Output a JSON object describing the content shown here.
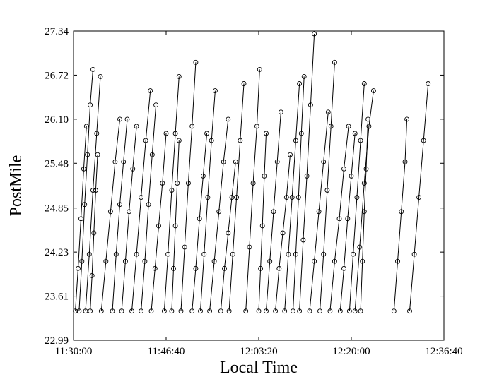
{
  "chart_data": {
    "type": "line",
    "title": "",
    "xlabel": "Local Time",
    "ylabel": "PostMile",
    "x_axis": {
      "range": [
        "11:30:00",
        "12:36:40"
      ],
      "ticks": [
        "11:30:00",
        "11:46:40",
        "12:03:20",
        "12:20:00",
        "12:36:40"
      ]
    },
    "y_axis": {
      "range": [
        22.99,
        27.34
      ],
      "ticks": [
        "22.99",
        "23.61",
        "24.23",
        "24.85",
        "25.48",
        "26.10",
        "26.72",
        "27.34"
      ]
    },
    "grid": false,
    "legend": "none",
    "marker": "open-circle",
    "line_color": "#000000",
    "series": [
      {
        "x": [
          "11:30:20",
          "11:30:50",
          "11:31:20",
          "11:31:50",
          "11:32:20"
        ],
        "y": [
          23.4,
          24.0,
          24.7,
          25.4,
          26.0
        ]
      },
      {
        "x": [
          "11:31:00",
          "11:31:30",
          "11:32:00",
          "11:32:30",
          "11:33:00",
          "11:33:30"
        ],
        "y": [
          23.4,
          24.1,
          24.9,
          25.6,
          26.3,
          26.8
        ]
      },
      {
        "x": [
          "11:32:10",
          "11:32:50",
          "11:33:30",
          "11:34:10",
          "11:34:50"
        ],
        "y": [
          23.4,
          24.2,
          25.1,
          25.9,
          26.7
        ]
      },
      {
        "x": [
          "11:33:00",
          "11:33:20",
          "11:33:40",
          "11:34:00",
          "11:34:20"
        ],
        "y": [
          23.4,
          23.9,
          24.5,
          25.1,
          25.6
        ]
      },
      {
        "x": [
          "11:35:00",
          "11:35:50",
          "11:36:40",
          "11:37:30",
          "11:38:20"
        ],
        "y": [
          23.4,
          24.1,
          24.8,
          25.5,
          26.1
        ]
      },
      {
        "x": [
          "11:37:00",
          "11:37:40",
          "11:38:20",
          "11:39:00",
          "11:39:40"
        ],
        "y": [
          23.4,
          24.2,
          24.9,
          25.5,
          26.1
        ]
      },
      {
        "x": [
          "11:38:40",
          "11:39:20",
          "11:40:00",
          "11:40:40",
          "11:41:20"
        ],
        "y": [
          23.4,
          24.1,
          24.8,
          25.4,
          26.0
        ]
      },
      {
        "x": [
          "11:40:30",
          "11:41:20",
          "11:42:10",
          "11:43:00",
          "11:43:50"
        ],
        "y": [
          23.4,
          24.2,
          25.0,
          25.8,
          26.5
        ]
      },
      {
        "x": [
          "11:42:10",
          "11:42:50",
          "11:43:30",
          "11:44:10",
          "11:44:50"
        ],
        "y": [
          23.4,
          24.1,
          24.9,
          25.6,
          26.3
        ]
      },
      {
        "x": [
          "11:44:00",
          "11:44:40",
          "11:45:20",
          "11:46:00",
          "11:46:40"
        ],
        "y": [
          23.4,
          24.0,
          24.6,
          25.2,
          25.9
        ]
      },
      {
        "x": [
          "11:46:20",
          "11:47:00",
          "11:47:40",
          "11:48:20",
          "11:49:00"
        ],
        "y": [
          23.4,
          24.2,
          25.1,
          25.9,
          26.7
        ]
      },
      {
        "x": [
          "11:47:40",
          "11:48:00",
          "11:48:20",
          "11:48:40",
          "11:49:00"
        ],
        "y": [
          23.4,
          24.0,
          24.6,
          25.2,
          25.8
        ]
      },
      {
        "x": [
          "11:49:20",
          "11:50:00",
          "11:50:40",
          "11:51:20",
          "11:52:00"
        ],
        "y": [
          23.4,
          24.3,
          25.2,
          26.0,
          26.9
        ]
      },
      {
        "x": [
          "11:51:20",
          "11:52:00",
          "11:52:40",
          "11:53:20",
          "11:54:00"
        ],
        "y": [
          23.4,
          24.0,
          24.7,
          25.3,
          25.9
        ]
      },
      {
        "x": [
          "11:52:50",
          "11:53:30",
          "11:54:10",
          "11:54:50",
          "11:55:30"
        ],
        "y": [
          23.4,
          24.2,
          25.0,
          25.8,
          26.5
        ]
      },
      {
        "x": [
          "11:54:30",
          "11:55:20",
          "11:56:10",
          "11:57:00",
          "11:57:50"
        ],
        "y": [
          23.4,
          24.1,
          24.8,
          25.5,
          26.1
        ]
      },
      {
        "x": [
          "11:56:30",
          "11:57:10",
          "11:57:50",
          "11:58:30",
          "11:59:10"
        ],
        "y": [
          23.4,
          24.0,
          24.5,
          25.0,
          25.5
        ]
      },
      {
        "x": [
          "11:58:00",
          "11:58:40",
          "11:59:20",
          "12:00:00",
          "12:00:40"
        ],
        "y": [
          23.4,
          24.2,
          25.0,
          25.8,
          26.6
        ]
      },
      {
        "x": [
          "12:01:00",
          "12:01:40",
          "12:02:20",
          "12:03:00",
          "12:03:30"
        ],
        "y": [
          23.4,
          24.3,
          25.2,
          26.0,
          26.8
        ]
      },
      {
        "x": [
          "12:03:20",
          "12:03:40",
          "12:04:00",
          "12:04:20",
          "12:04:40"
        ],
        "y": [
          23.4,
          24.0,
          24.6,
          25.3,
          25.9
        ]
      },
      {
        "x": [
          "12:04:40",
          "12:05:20",
          "12:06:00",
          "12:06:40",
          "12:07:20"
        ],
        "y": [
          23.4,
          24.1,
          24.8,
          25.5,
          26.2
        ]
      },
      {
        "x": [
          "12:06:20",
          "12:07:00",
          "12:07:40",
          "12:08:20",
          "12:09:00"
        ],
        "y": [
          23.4,
          24.0,
          24.5,
          25.0,
          25.6
        ]
      },
      {
        "x": [
          "12:08:00",
          "12:08:40",
          "12:09:20",
          "12:10:00",
          "12:10:40"
        ],
        "y": [
          23.4,
          24.2,
          25.0,
          25.8,
          26.6
        ]
      },
      {
        "x": [
          "12:09:30",
          "12:10:00",
          "12:10:30",
          "12:11:00",
          "12:11:30"
        ],
        "y": [
          23.4,
          24.2,
          25.0,
          25.9,
          26.7
        ]
      },
      {
        "x": [
          "12:10:40",
          "12:11:20",
          "12:12:00",
          "12:12:40",
          "12:13:20"
        ],
        "y": [
          23.4,
          24.4,
          25.3,
          26.3,
          27.3
        ]
      },
      {
        "x": [
          "12:12:30",
          "12:13:20",
          "12:14:10",
          "12:15:00",
          "12:15:50"
        ],
        "y": [
          23.4,
          24.1,
          24.8,
          25.5,
          26.2
        ]
      },
      {
        "x": [
          "12:14:20",
          "12:15:00",
          "12:15:40",
          "12:16:20",
          "12:17:00"
        ],
        "y": [
          23.4,
          24.2,
          25.1,
          26.0,
          26.9
        ]
      },
      {
        "x": [
          "12:16:10",
          "12:17:00",
          "12:17:50",
          "12:18:40",
          "12:19:30"
        ],
        "y": [
          23.4,
          24.1,
          24.7,
          25.4,
          26.0
        ]
      },
      {
        "x": [
          "12:18:00",
          "12:18:40",
          "12:19:20",
          "12:20:00",
          "12:20:40"
        ],
        "y": [
          23.4,
          24.0,
          24.7,
          25.3,
          25.9
        ]
      },
      {
        "x": [
          "12:19:40",
          "12:20:20",
          "12:21:00",
          "12:21:40",
          "12:22:20"
        ],
        "y": [
          23.4,
          24.2,
          25.0,
          25.8,
          26.6
        ]
      },
      {
        "x": [
          "12:20:40",
          "12:21:30",
          "12:22:20",
          "12:23:10",
          "12:24:00"
        ],
        "y": [
          23.4,
          24.3,
          25.2,
          26.0,
          26.5
        ]
      },
      {
        "x": [
          "12:21:40",
          "12:22:00",
          "12:22:20",
          "12:22:40",
          "12:23:00"
        ],
        "y": [
          23.4,
          24.1,
          24.8,
          25.4,
          26.1
        ]
      },
      {
        "x": [
          "12:27:40",
          "12:28:20",
          "12:29:00",
          "12:29:40",
          "12:30:00"
        ],
        "y": [
          23.4,
          24.1,
          24.8,
          25.5,
          26.1
        ]
      },
      {
        "x": [
          "12:30:30",
          "12:31:20",
          "12:32:10",
          "12:33:00",
          "12:33:50"
        ],
        "y": [
          23.4,
          24.2,
          25.0,
          25.8,
          26.6
        ]
      }
    ]
  }
}
